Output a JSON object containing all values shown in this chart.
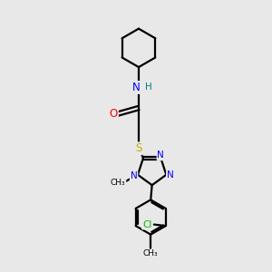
{
  "background_color": "#e8e8e8",
  "atom_colors": {
    "C": "#000000",
    "N": "#0000ff",
    "O": "#ff0000",
    "S": "#ccaa00",
    "H": "#008080",
    "Cl": "#00bb00"
  },
  "figsize": [
    3.0,
    3.0
  ],
  "dpi": 100
}
